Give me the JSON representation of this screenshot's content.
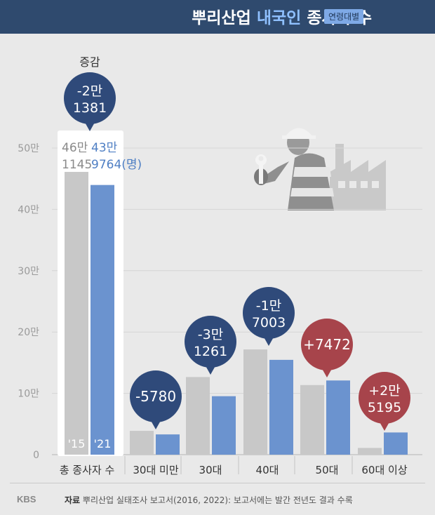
{
  "header": {
    "title_prefix": "뿌리산업 ",
    "title_highlight": "내국인",
    "title_suffix": " 종사자 수",
    "badge": "연령대별"
  },
  "footer": {
    "logo": "KBS",
    "source_label": "자료",
    "source_text": "뿌리산업 실태조사 보고서(2016, 2022): 보고서에는 발간 전년도 결과 수록"
  },
  "chart_data": {
    "type": "bar",
    "categories": [
      "총 종사자 수",
      "30대 미만",
      "30대",
      "40대",
      "50대",
      "60대 이상"
    ],
    "series": [
      {
        "name": "'15",
        "color": "#c8c8c8",
        "values": [
          461145,
          38800,
          126600,
          171600,
          113500,
          11000
        ]
      },
      {
        "name": "'21",
        "color": "#6b93cf",
        "values": [
          439764,
          33020,
          95339,
          154597,
          120972,
          36195
        ]
      }
    ],
    "y_ticks": [
      0,
      100000,
      200000,
      300000,
      400000,
      500000
    ],
    "y_tick_labels": [
      "0",
      "10만",
      "20만",
      "30만",
      "40만",
      "50만"
    ],
    "ylim": [
      0,
      520000
    ],
    "total_labels": {
      "y2015": [
        "46만",
        "1145"
      ],
      "y2021": [
        "43만",
        "9764(명)"
      ]
    },
    "change_heading": "증감",
    "changes": [
      {
        "lines": [
          "-2만",
          "1381"
        ],
        "type": "decrease"
      },
      {
        "lines": [
          "-5780"
        ],
        "type": "decrease"
      },
      {
        "lines": [
          "-3만",
          "1261"
        ],
        "type": "decrease"
      },
      {
        "lines": [
          "-1만",
          "7003"
        ],
        "type": "decrease"
      },
      {
        "lines": [
          "+7472"
        ],
        "type": "increase"
      },
      {
        "lines": [
          "+2만",
          "5195"
        ],
        "type": "increase"
      }
    ],
    "colors": {
      "decrease": "#2f4a7a",
      "increase": "#a7444b"
    },
    "grid": true
  }
}
